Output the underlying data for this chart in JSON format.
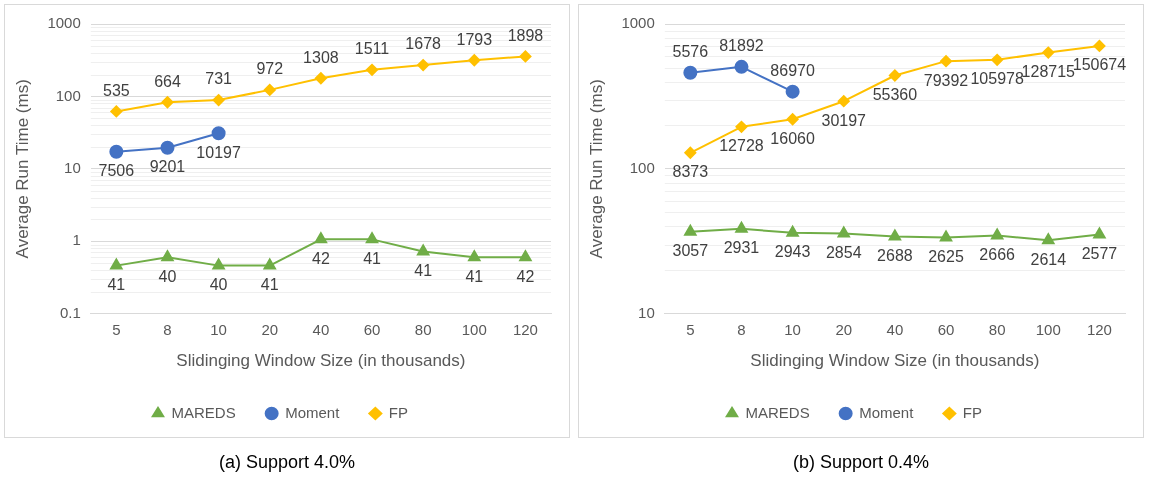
{
  "chart_data": [
    {
      "type": "line",
      "title": "(a) Support 4.0%",
      "xlabel": "Slidinging Window Size (in thousands)",
      "ylabel": "Average Run Time (ms)",
      "categories": [
        "5",
        "8",
        "10",
        "20",
        "40",
        "60",
        "80",
        "100",
        "120"
      ],
      "log": "y",
      "ylim": [
        0.1,
        1000
      ],
      "yticks": [
        0.1,
        1,
        10,
        100,
        1000
      ],
      "grid": "y",
      "legend": "bottom",
      "series": [
        {
          "name": "MAREDS",
          "color": "#70ad47",
          "marker": "triangle",
          "values": [
            0.46,
            0.6,
            0.46,
            0.46,
            1.06,
            1.06,
            0.72,
            0.6,
            0.6
          ]
        },
        {
          "name": "Moment",
          "color": "#4472c4",
          "marker": "circle",
          "values": [
            17.2,
            19.5,
            31,
            null,
            null,
            null,
            null,
            null,
            null
          ]
        },
        {
          "name": "FP",
          "color": "#ffc000",
          "marker": "diamond",
          "values": [
            62,
            83,
            89,
            123,
            178,
            233,
            271,
            316,
            357
          ]
        }
      ],
      "annotations": [
        {
          "text": "41",
          "x": "5",
          "y": 0.46
        },
        {
          "text": "40",
          "x": "8",
          "y": 0.6
        },
        {
          "text": "40",
          "x": "10",
          "y": 0.46
        },
        {
          "text": "41",
          "x": "20",
          "y": 0.46
        },
        {
          "text": "42",
          "x": "40",
          "y": 1.06
        },
        {
          "text": "41",
          "x": "60",
          "y": 1.06
        },
        {
          "text": "41",
          "x": "80",
          "y": 0.72
        },
        {
          "text": "41",
          "x": "100",
          "y": 0.6
        },
        {
          "text": "42",
          "x": "120",
          "y": 0.6
        },
        {
          "text": "7506",
          "x": "5",
          "y": 17.2
        },
        {
          "text": "9201",
          "x": "8",
          "y": 19.5
        },
        {
          "text": "10197",
          "x": "10",
          "y": 31
        },
        {
          "text": "535",
          "x": "5",
          "y": 62
        },
        {
          "text": "664",
          "x": "8",
          "y": 83
        },
        {
          "text": "731",
          "x": "10",
          "y": 89
        },
        {
          "text": "972",
          "x": "20",
          "y": 123
        },
        {
          "text": "1308",
          "x": "40",
          "y": 178
        },
        {
          "text": "1511",
          "x": "60",
          "y": 233
        },
        {
          "text": "1678",
          "x": "80",
          "y": 271
        },
        {
          "text": "1793",
          "x": "100",
          "y": 316
        },
        {
          "text": "1898",
          "x": "120",
          "y": 357
        }
      ]
    },
    {
      "type": "line",
      "title": "(b) Support 0.4%",
      "xlabel": "Slidinging Window Size (in thousands)",
      "ylabel": "Average Run Time (ms)",
      "categories": [
        "5",
        "8",
        "10",
        "20",
        "40",
        "60",
        "80",
        "100",
        "120"
      ],
      "log": "y",
      "ylim": [
        10,
        1000
      ],
      "yticks": [
        10,
        100,
        1000
      ],
      "grid": "y",
      "legend": "bottom",
      "series": [
        {
          "name": "MAREDS",
          "color": "#70ad47",
          "marker": "triangle",
          "values": [
            36.8,
            38.5,
            36.2,
            35.7,
            34.1,
            33.6,
            34.6,
            32.1,
            35.2
          ]
        },
        {
          "name": "Moment",
          "color": "#4472c4",
          "marker": "circle",
          "values": [
            461,
            506,
            341,
            null,
            null,
            null,
            null,
            null,
            null
          ]
        },
        {
          "name": "FP",
          "color": "#ffc000",
          "marker": "diamond",
          "values": [
            129,
            195,
            220,
            293,
            441,
            554,
            566,
            635,
            706
          ]
        }
      ],
      "annotations": [
        {
          "text": "3057",
          "x": "5",
          "y": 36.8
        },
        {
          "text": "2931",
          "x": "8",
          "y": 38.5
        },
        {
          "text": "2943",
          "x": "10",
          "y": 36.2
        },
        {
          "text": "2854",
          "x": "20",
          "y": 35.7
        },
        {
          "text": "2688",
          "x": "40",
          "y": 34.1
        },
        {
          "text": "2625",
          "x": "60",
          "y": 33.6
        },
        {
          "text": "2666",
          "x": "80",
          "y": 34.6
        },
        {
          "text": "2614",
          "x": "100",
          "y": 32.1
        },
        {
          "text": "2577",
          "x": "120",
          "y": 35.2
        },
        {
          "text": "5576",
          "x": "5",
          "y": 461
        },
        {
          "text": "81892",
          "x": "8",
          "y": 506
        },
        {
          "text": "86970",
          "x": "10",
          "y": 341
        },
        {
          "text": "8373",
          "x": "5",
          "y": 129
        },
        {
          "text": "12728",
          "x": "8",
          "y": 195
        },
        {
          "text": "16060",
          "x": "10",
          "y": 220
        },
        {
          "text": "30197",
          "x": "20",
          "y": 293
        },
        {
          "text": "55360",
          "x": "40",
          "y": 441
        },
        {
          "text": "79392",
          "x": "60",
          "y": 554
        },
        {
          "text": "105978",
          "x": "80",
          "y": 566
        },
        {
          "text": "128715",
          "x": "100",
          "y": 635
        },
        {
          "text": "150674",
          "x": "120",
          "y": 706
        }
      ]
    }
  ]
}
